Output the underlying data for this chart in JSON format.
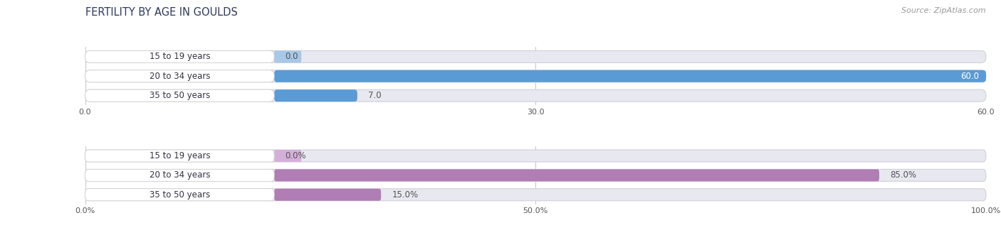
{
  "title": "FERTILITY BY AGE IN GOULDS",
  "source": "Source: ZipAtlas.com",
  "top_chart": {
    "categories": [
      "15 to 19 years",
      "20 to 34 years",
      "35 to 50 years"
    ],
    "values": [
      0.0,
      60.0,
      7.0
    ],
    "max_val": 60.0,
    "x_ticks": [
      0.0,
      30.0,
      60.0
    ],
    "x_tick_labels": [
      "0.0",
      "30.0",
      "60.0"
    ],
    "bar_color": "#5b9bd5",
    "bar_light_color": "#a8c8e8",
    "label_color_inside": "#ffffff",
    "label_color_outside": "#555555"
  },
  "bottom_chart": {
    "categories": [
      "15 to 19 years",
      "20 to 34 years",
      "35 to 50 years"
    ],
    "values": [
      0.0,
      85.0,
      15.0
    ],
    "max_val": 100.0,
    "x_ticks": [
      0.0,
      50.0,
      100.0
    ],
    "x_tick_labels": [
      "0.0%",
      "50.0%",
      "100.0%"
    ],
    "bar_color": "#b07db5",
    "bar_light_color": "#d4b0d8",
    "label_color_inside": "#ffffff",
    "label_color_outside": "#555555"
  },
  "fig_bg_color": "#ffffff",
  "row_bg_color": "#e8e8f0",
  "row_border_color": "#d0d0d8",
  "white_label_bg": "#ffffff",
  "title_color": "#2d3a5a",
  "title_fontsize": 10.5,
  "source_fontsize": 8,
  "label_fontsize": 8.5,
  "tick_fontsize": 8,
  "category_fontsize": 8.5,
  "fig_width": 14.06,
  "fig_height": 3.31
}
